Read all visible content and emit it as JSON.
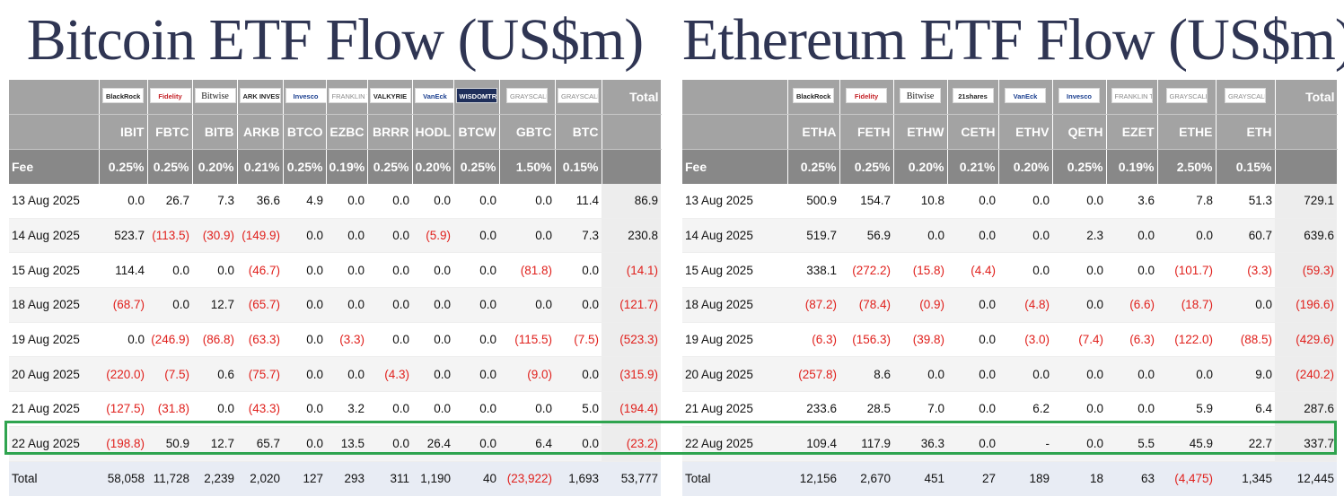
{
  "btc": {
    "title": "Bitcoin ETF Flow (US$m)",
    "logos": [
      {
        "name": "blackrock-logo",
        "text": "BlackRock",
        "style": ""
      },
      {
        "name": "fidelity-logo",
        "text": "Fidelity",
        "style": "red"
      },
      {
        "name": "bitwise-logo",
        "text": "Bitwise",
        "style": "serif"
      },
      {
        "name": "ark-invest-logo",
        "text": "ARK INVEST",
        "style": ""
      },
      {
        "name": "invesco-logo",
        "text": "Invesco",
        "style": "blue"
      },
      {
        "name": "franklin-templeton-logo",
        "text": "FRANKLIN TEMPLETON",
        "style": "grey"
      },
      {
        "name": "valkyrie-logo",
        "text": "VALKYRIE",
        "style": ""
      },
      {
        "name": "vaneck-logo",
        "text": "VanEck",
        "style": "blue"
      },
      {
        "name": "wisdomtree-logo",
        "text": "WISDOMTREE",
        "style": "dark"
      },
      {
        "name": "grayscale-logo",
        "text": "GRAYSCALE",
        "style": "grey"
      },
      {
        "name": "grayscale-logo",
        "text": "GRAYSCALE",
        "style": "grey"
      }
    ],
    "total_label": "Total",
    "tickers": [
      "IBIT",
      "FBTC",
      "BITB",
      "ARKB",
      "BTCO",
      "EZBC",
      "BRRR",
      "HODL",
      "BTCW",
      "GBTC",
      "BTC"
    ],
    "fee_label": "Fee",
    "fees": [
      "0.25%",
      "0.25%",
      "0.20%",
      "0.21%",
      "0.25%",
      "0.19%",
      "0.25%",
      "0.20%",
      "0.25%",
      "1.50%",
      "0.15%"
    ],
    "rows": [
      {
        "date": "13 Aug 2025",
        "values": [
          "0.0",
          "26.7",
          "7.3",
          "36.6",
          "4.9",
          "0.0",
          "0.0",
          "0.0",
          "0.0",
          "0.0",
          "11.4"
        ],
        "total": "86.9"
      },
      {
        "date": "14 Aug 2025",
        "values": [
          "523.7",
          "(113.5)",
          "(30.9)",
          "(149.9)",
          "0.0",
          "0.0",
          "0.0",
          "(5.9)",
          "0.0",
          "0.0",
          "7.3"
        ],
        "total": "230.8"
      },
      {
        "date": "15 Aug 2025",
        "values": [
          "114.4",
          "0.0",
          "0.0",
          "(46.7)",
          "0.0",
          "0.0",
          "0.0",
          "0.0",
          "0.0",
          "(81.8)",
          "0.0"
        ],
        "total": "(14.1)"
      },
      {
        "date": "18 Aug 2025",
        "values": [
          "(68.7)",
          "0.0",
          "12.7",
          "(65.7)",
          "0.0",
          "0.0",
          "0.0",
          "0.0",
          "0.0",
          "0.0",
          "0.0"
        ],
        "total": "(121.7)"
      },
      {
        "date": "19 Aug 2025",
        "values": [
          "0.0",
          "(246.9)",
          "(86.8)",
          "(63.3)",
          "0.0",
          "(3.3)",
          "0.0",
          "0.0",
          "0.0",
          "(115.5)",
          "(7.5)"
        ],
        "total": "(523.3)"
      },
      {
        "date": "20 Aug 2025",
        "values": [
          "(220.0)",
          "(7.5)",
          "0.6",
          "(75.7)",
          "0.0",
          "0.0",
          "(4.3)",
          "0.0",
          "0.0",
          "(9.0)",
          "0.0"
        ],
        "total": "(315.9)"
      },
      {
        "date": "21 Aug 2025",
        "values": [
          "(127.5)",
          "(31.8)",
          "0.0",
          "(43.3)",
          "0.0",
          "3.2",
          "0.0",
          "0.0",
          "0.0",
          "0.0",
          "5.0"
        ],
        "total": "(194.4)"
      },
      {
        "date": "22 Aug 2025",
        "values": [
          "(198.8)",
          "50.9",
          "12.7",
          "65.7",
          "0.0",
          "13.5",
          "0.0",
          "26.4",
          "0.0",
          "6.4",
          "0.0"
        ],
        "total": "(23.2)"
      }
    ],
    "totals_label": "Total",
    "totals": [
      "58,058",
      "11,728",
      "2,239",
      "2,020",
      "127",
      "293",
      "311",
      "1,190",
      "40",
      "(23,922)",
      "1,693"
    ],
    "grand_total": "53,777"
  },
  "eth": {
    "title": "Ethereum ETF Flow (US$m)",
    "logos": [
      {
        "name": "blackrock-logo",
        "text": "BlackRock",
        "style": ""
      },
      {
        "name": "fidelity-logo",
        "text": "Fidelity",
        "style": "red"
      },
      {
        "name": "bitwise-logo",
        "text": "Bitwise",
        "style": "serif"
      },
      {
        "name": "21shares-logo",
        "text": "21shares",
        "style": ""
      },
      {
        "name": "vaneck-logo",
        "text": "VanEck",
        "style": "blue"
      },
      {
        "name": "invesco-logo",
        "text": "Invesco",
        "style": "blue"
      },
      {
        "name": "franklin-templeton-logo",
        "text": "FRANKLIN TEMPLETON",
        "style": "grey"
      },
      {
        "name": "grayscale-logo",
        "text": "GRAYSCALE",
        "style": "grey"
      },
      {
        "name": "grayscale-logo",
        "text": "GRAYSCALE",
        "style": "grey"
      }
    ],
    "total_label": "Total",
    "tickers": [
      "ETHA",
      "FETH",
      "ETHW",
      "CETH",
      "ETHV",
      "QETH",
      "EZET",
      "ETHE",
      "ETH"
    ],
    "fee_label": "Fee",
    "fees": [
      "0.25%",
      "0.25%",
      "0.20%",
      "0.21%",
      "0.20%",
      "0.25%",
      "0.19%",
      "2.50%",
      "0.15%"
    ],
    "rows": [
      {
        "date": "13 Aug 2025",
        "values": [
          "500.9",
          "154.7",
          "10.8",
          "0.0",
          "0.0",
          "0.0",
          "3.6",
          "7.8",
          "51.3"
        ],
        "total": "729.1"
      },
      {
        "date": "14 Aug 2025",
        "values": [
          "519.7",
          "56.9",
          "0.0",
          "0.0",
          "0.0",
          "2.3",
          "0.0",
          "0.0",
          "60.7"
        ],
        "total": "639.6"
      },
      {
        "date": "15 Aug 2025",
        "values": [
          "338.1",
          "(272.2)",
          "(15.8)",
          "(4.4)",
          "0.0",
          "0.0",
          "0.0",
          "(101.7)",
          "(3.3)"
        ],
        "total": "(59.3)"
      },
      {
        "date": "18 Aug 2025",
        "values": [
          "(87.2)",
          "(78.4)",
          "(0.9)",
          "0.0",
          "(4.8)",
          "0.0",
          "(6.6)",
          "(18.7)",
          "0.0"
        ],
        "total": "(196.6)"
      },
      {
        "date": "19 Aug 2025",
        "values": [
          "(6.3)",
          "(156.3)",
          "(39.8)",
          "0.0",
          "(3.0)",
          "(7.4)",
          "(6.3)",
          "(122.0)",
          "(88.5)"
        ],
        "total": "(429.6)"
      },
      {
        "date": "20 Aug 2025",
        "values": [
          "(257.8)",
          "8.6",
          "0.0",
          "0.0",
          "0.0",
          "0.0",
          "0.0",
          "0.0",
          "9.0"
        ],
        "total": "(240.2)"
      },
      {
        "date": "21 Aug 2025",
        "values": [
          "233.6",
          "28.5",
          "7.0",
          "0.0",
          "6.2",
          "0.0",
          "0.0",
          "5.9",
          "6.4"
        ],
        "total": "287.6"
      },
      {
        "date": "22 Aug 2025",
        "values": [
          "109.4",
          "117.9",
          "36.3",
          "0.0",
          "-",
          "0.0",
          "5.5",
          "45.9",
          "22.7"
        ],
        "total": "337.7"
      }
    ],
    "totals_label": "Total",
    "totals": [
      "12,156",
      "2,670",
      "451",
      "27",
      "189",
      "18",
      "63",
      "(4,475)",
      "1,345"
    ],
    "grand_total": "12,445"
  },
  "colors": {
    "header_bg": "#a3a3a3",
    "fee_bg": "#888888",
    "negative": "#e0201c",
    "highlight": "#2fa44f",
    "title": "#2f3553"
  }
}
